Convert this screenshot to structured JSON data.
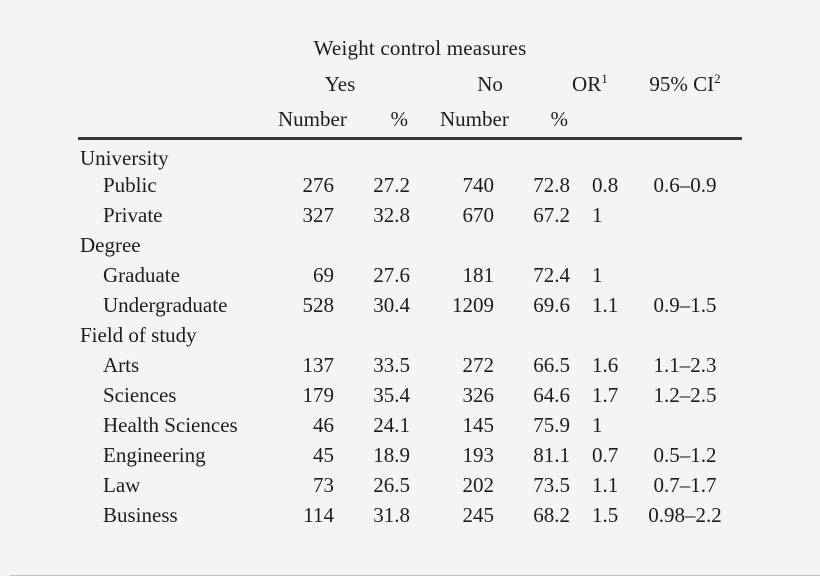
{
  "page": {
    "background_color": "#f5f4f2",
    "text_color": "#1d1d1d",
    "rule_color": "#383838"
  },
  "table": {
    "caption": "Weight control measures",
    "headers": {
      "yes": "Yes",
      "no": "No",
      "or": "OR",
      "or_footnote": "1",
      "ci": "95% CI",
      "ci_footnote": "2",
      "number": "Number",
      "percent": "%"
    },
    "rows": [
      {
        "type": "group",
        "label": "University"
      },
      {
        "type": "item",
        "label": "Public",
        "yes_number": "276",
        "yes_percent": "27.2",
        "no_number": "740",
        "no_percent": "72.8",
        "odds_ratio": "0.8",
        "ci_95": "0.6–0.9"
      },
      {
        "type": "item",
        "label": "Private",
        "yes_number": "327",
        "yes_percent": "32.8",
        "no_number": "670",
        "no_percent": "67.2",
        "odds_ratio": "1",
        "ci_95": ""
      },
      {
        "type": "group",
        "label": "Degree"
      },
      {
        "type": "item",
        "label": "Graduate",
        "yes_number": "69",
        "yes_percent": "27.6",
        "no_number": "181",
        "no_percent": "72.4",
        "odds_ratio": "1",
        "ci_95": ""
      },
      {
        "type": "item",
        "label": "Undergraduate",
        "yes_number": "528",
        "yes_percent": "30.4",
        "no_number": "1209",
        "no_percent": "69.6",
        "odds_ratio": "1.1",
        "ci_95": "0.9–1.5"
      },
      {
        "type": "group",
        "label": "Field of study"
      },
      {
        "type": "item",
        "label": "Arts",
        "yes_number": "137",
        "yes_percent": "33.5",
        "no_number": "272",
        "no_percent": "66.5",
        "odds_ratio": "1.6",
        "ci_95": "1.1–2.3"
      },
      {
        "type": "item",
        "label": "Sciences",
        "yes_number": "179",
        "yes_percent": "35.4",
        "no_number": "326",
        "no_percent": "64.6",
        "odds_ratio": "1.7",
        "ci_95": "1.2–2.5"
      },
      {
        "type": "item",
        "label": "Health Sciences",
        "yes_number": "46",
        "yes_percent": "24.1",
        "no_number": "145",
        "no_percent": "75.9",
        "odds_ratio": "1",
        "ci_95": ""
      },
      {
        "type": "item",
        "label": "Engineering",
        "yes_number": "45",
        "yes_percent": "18.9",
        "no_number": "193",
        "no_percent": "81.1",
        "odds_ratio": "0.7",
        "ci_95": "0.5–1.2"
      },
      {
        "type": "item",
        "label": "Law",
        "yes_number": "73",
        "yes_percent": "26.5",
        "no_number": "202",
        "no_percent": "73.5",
        "odds_ratio": "1.1",
        "ci_95": "0.7–1.7"
      },
      {
        "type": "item",
        "label": "Business",
        "yes_number": "114",
        "yes_percent": "31.8",
        "no_number": "245",
        "no_percent": "68.2",
        "odds_ratio": "1.5",
        "ci_95": "0.98–2.2"
      }
    ]
  }
}
